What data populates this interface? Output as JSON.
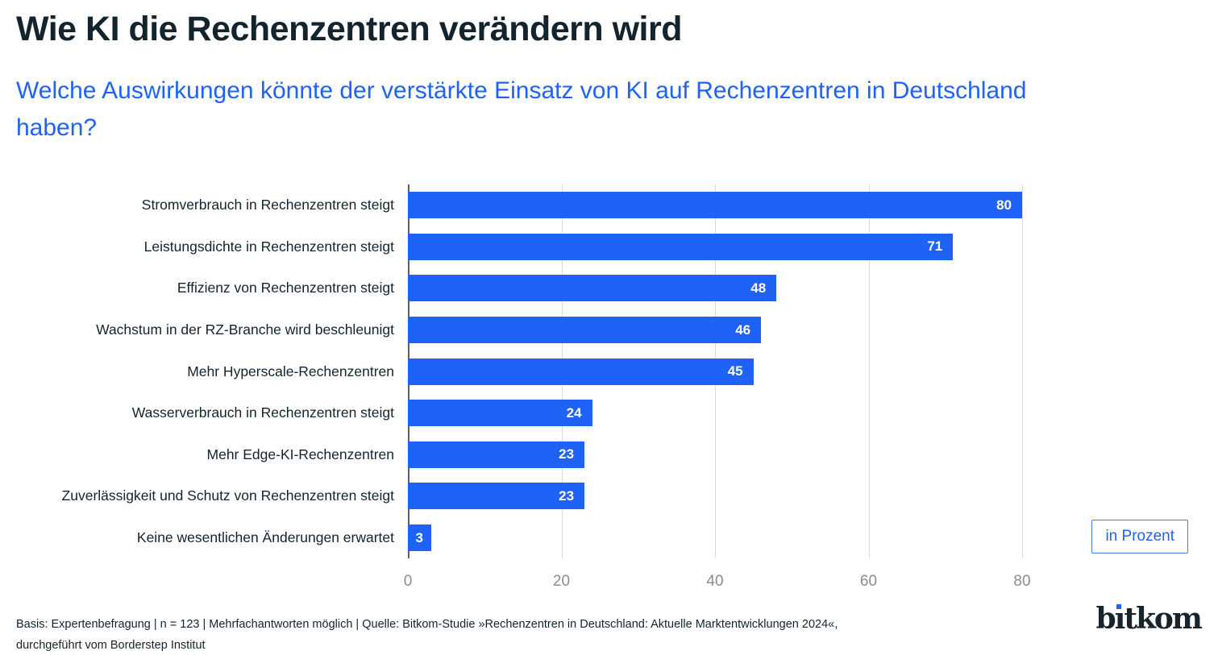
{
  "colors": {
    "accent": "#1e63f5",
    "ink": "#13242e",
    "axis_text": "#8c8c8c",
    "gridline": "#d9d9d9",
    "zero_line": "#55606a",
    "badge_border": "#4a7cf6"
  },
  "header": {
    "title": "Wie KI die Rechenzentren verändern wird",
    "subtitle": "Welche Auswirkungen könnte der verstärkte Einsatz von KI auf Rechenzentren in Deutschland haben?"
  },
  "chart_data": {
    "type": "bar",
    "orientation": "horizontal",
    "title": "",
    "categories": [
      "Stromverbrauch in Rechenzentren steigt",
      "Leistungsdichte in Rechenzentren steigt",
      "Effizienz von Rechenzentren steigt",
      "Wachstum in der RZ-Branche wird beschleunigt",
      "Mehr Hyperscale-Rechenzentren",
      "Wasserverbrauch in Rechenzentren steigt",
      "Mehr Edge-KI-Rechenzentren",
      "Zuverlässigkeit und Schutz von Rechenzentren steigt",
      "Keine wesentlichen Änderungen erwartet"
    ],
    "values": [
      80,
      71,
      48,
      46,
      45,
      24,
      23,
      23,
      3
    ],
    "unit": "Prozent",
    "xlabel": "",
    "ylabel": "",
    "xlim": [
      0,
      80
    ],
    "xticks": [
      0,
      20,
      40,
      60,
      80
    ],
    "grid": "vertical gridlines on",
    "legend": "none",
    "value_label_position": "inside-end, white bold"
  },
  "unit_badge": {
    "label": "in Prozent"
  },
  "footer": {
    "line1": "Basis: Expertenbefragung | n = 123 | Mehrfachantworten möglich | Quelle: Bitkom-Studie »Rechenzentren in Deutschland: Aktuelle Marktentwicklungen 2024«,",
    "line2": "durchgeführt vom Borderstep Institut"
  },
  "logo": {
    "text": "bitkom"
  }
}
